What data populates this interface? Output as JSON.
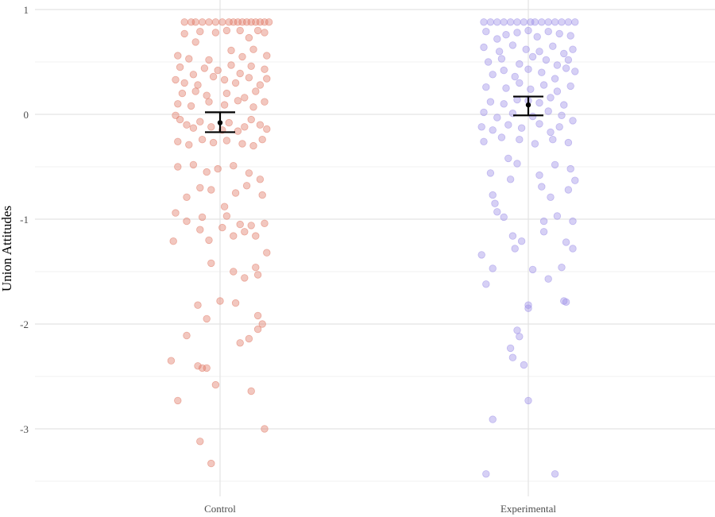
{
  "chart_data": {
    "type": "scatter",
    "subtype": "jitter-strip with mean and error bars",
    "title": "",
    "xlabel": "",
    "ylabel": "Union Attitudes",
    "categories": [
      "Control",
      "Experimental"
    ],
    "ylim": [
      -3.55,
      1.0
    ],
    "y_ticks": [
      1,
      0,
      -1,
      -2,
      -3
    ],
    "y_tick_labels": [
      "1",
      "0",
      "-1",
      "-2",
      "-3"
    ],
    "grid": true,
    "legend": "none",
    "series": [
      {
        "category": "Control",
        "color": "#e07a66",
        "summary": {
          "mean": -0.08,
          "lower": -0.17,
          "upper": 0.02
        },
        "points": [
          [
            -0.16,
            0.88
          ],
          [
            -0.13,
            0.88
          ],
          [
            -0.11,
            0.88
          ],
          [
            -0.08,
            0.88
          ],
          [
            -0.05,
            0.88
          ],
          [
            -0.02,
            0.88
          ],
          [
            0.01,
            0.88
          ],
          [
            0.04,
            0.88
          ],
          [
            0.06,
            0.88
          ],
          [
            0.08,
            0.88
          ],
          [
            0.1,
            0.88
          ],
          [
            0.12,
            0.88
          ],
          [
            0.14,
            0.88
          ],
          [
            0.16,
            0.88
          ],
          [
            0.18,
            0.88
          ],
          [
            0.2,
            0.88
          ],
          [
            0.22,
            0.88
          ],
          [
            -0.16,
            0.77
          ],
          [
            -0.11,
            0.69
          ],
          [
            -0.09,
            0.79
          ],
          [
            -0.02,
            0.78
          ],
          [
            0.03,
            0.8
          ],
          [
            0.09,
            0.8
          ],
          [
            0.13,
            0.73
          ],
          [
            0.17,
            0.8
          ],
          [
            0.2,
            0.78
          ],
          [
            -0.19,
            0.56
          ],
          [
            -0.14,
            0.53
          ],
          [
            -0.05,
            0.52
          ],
          [
            0.05,
            0.61
          ],
          [
            0.1,
            0.55
          ],
          [
            0.15,
            0.62
          ],
          [
            0.21,
            0.56
          ],
          [
            -0.18,
            0.45
          ],
          [
            -0.12,
            0.38
          ],
          [
            -0.07,
            0.44
          ],
          [
            -0.01,
            0.42
          ],
          [
            0.05,
            0.47
          ],
          [
            0.09,
            0.39
          ],
          [
            0.14,
            0.46
          ],
          [
            0.2,
            0.43
          ],
          [
            -0.2,
            0.33
          ],
          [
            -0.16,
            0.3
          ],
          [
            -0.1,
            0.28
          ],
          [
            -0.03,
            0.36
          ],
          [
            0.02,
            0.33
          ],
          [
            0.07,
            0.3
          ],
          [
            0.13,
            0.35
          ],
          [
            0.18,
            0.28
          ],
          [
            0.21,
            0.34
          ],
          [
            -0.17,
            0.2
          ],
          [
            -0.11,
            0.22
          ],
          [
            -0.06,
            0.18
          ],
          [
            0.03,
            0.2
          ],
          [
            0.11,
            0.16
          ],
          [
            0.16,
            0.22
          ],
          [
            -0.19,
            0.1
          ],
          [
            -0.13,
            0.08
          ],
          [
            -0.05,
            0.12
          ],
          [
            0.02,
            0.09
          ],
          [
            0.08,
            0.13
          ],
          [
            0.15,
            0.07
          ],
          [
            0.2,
            0.12
          ],
          [
            -0.2,
            -0.01
          ],
          [
            -0.18,
            -0.05
          ],
          [
            -0.15,
            -0.1
          ],
          [
            -0.12,
            -0.13
          ],
          [
            -0.09,
            -0.07
          ],
          [
            -0.04,
            -0.12
          ],
          [
            0.01,
            -0.15
          ],
          [
            0.04,
            -0.08
          ],
          [
            0.08,
            -0.16
          ],
          [
            0.11,
            -0.12
          ],
          [
            0.14,
            -0.05
          ],
          [
            0.18,
            -0.1
          ],
          [
            0.21,
            -0.14
          ],
          [
            -0.19,
            -0.26
          ],
          [
            -0.14,
            -0.29
          ],
          [
            -0.08,
            -0.24
          ],
          [
            -0.03,
            -0.27
          ],
          [
            0.03,
            -0.25
          ],
          [
            0.1,
            -0.28
          ],
          [
            0.15,
            -0.3
          ],
          [
            0.19,
            -0.24
          ],
          [
            -0.19,
            -0.5
          ],
          [
            -0.12,
            -0.48
          ],
          [
            -0.06,
            -0.55
          ],
          [
            -0.01,
            -0.52
          ],
          [
            0.06,
            -0.49
          ],
          [
            0.13,
            -0.56
          ],
          [
            0.18,
            -0.62
          ],
          [
            -0.15,
            -0.79
          ],
          [
            -0.09,
            -0.7
          ],
          [
            -0.04,
            -0.72
          ],
          [
            0.02,
            -0.88
          ],
          [
            0.07,
            -0.75
          ],
          [
            0.12,
            -0.68
          ],
          [
            0.19,
            -0.77
          ],
          [
            -0.2,
            -0.94
          ],
          [
            -0.15,
            -1.02
          ],
          [
            -0.08,
            -0.98
          ],
          [
            0.03,
            -0.97
          ],
          [
            0.09,
            -1.05
          ],
          [
            0.14,
            -1.06
          ],
          [
            0.2,
            -1.04
          ],
          [
            -0.21,
            -1.21
          ],
          [
            -0.09,
            -1.1
          ],
          [
            -0.05,
            -1.2
          ],
          [
            0.01,
            -1.08
          ],
          [
            0.06,
            -1.16
          ],
          [
            0.11,
            -1.12
          ],
          [
            0.16,
            -1.16
          ],
          [
            0.21,
            -1.32
          ],
          [
            -0.04,
            -1.42
          ],
          [
            0.06,
            -1.5
          ],
          [
            0.11,
            -1.56
          ],
          [
            0.16,
            -1.46
          ],
          [
            0.17,
            -1.53
          ],
          [
            -0.1,
            -1.82
          ],
          [
            -0.06,
            -1.95
          ],
          [
            0.0,
            -1.78
          ],
          [
            0.07,
            -1.8
          ],
          [
            0.17,
            -1.92
          ],
          [
            -0.15,
            -2.11
          ],
          [
            0.09,
            -2.18
          ],
          [
            0.13,
            -2.14
          ],
          [
            0.19,
            -2.0
          ],
          [
            0.17,
            -2.05
          ],
          [
            -0.22,
            -2.35
          ],
          [
            -0.1,
            -2.4
          ],
          [
            -0.08,
            -2.42
          ],
          [
            -0.06,
            -2.42
          ],
          [
            -0.19,
            -2.73
          ],
          [
            -0.02,
            -2.58
          ],
          [
            0.14,
            -2.64
          ],
          [
            0.2,
            -3.0
          ],
          [
            -0.09,
            -3.12
          ],
          [
            -0.04,
            -3.33
          ]
        ]
      },
      {
        "category": "Experimental",
        "color": "#9d8fe8",
        "summary": {
          "mean": 0.09,
          "lower": -0.01,
          "upper": 0.17
        },
        "points": [
          [
            -0.2,
            0.88
          ],
          [
            -0.17,
            0.88
          ],
          [
            -0.14,
            0.88
          ],
          [
            -0.11,
            0.88
          ],
          [
            -0.08,
            0.88
          ],
          [
            -0.05,
            0.88
          ],
          [
            -0.02,
            0.88
          ],
          [
            0.01,
            0.88
          ],
          [
            0.03,
            0.88
          ],
          [
            0.06,
            0.88
          ],
          [
            0.09,
            0.88
          ],
          [
            0.12,
            0.88
          ],
          [
            0.15,
            0.88
          ],
          [
            0.18,
            0.88
          ],
          [
            0.21,
            0.88
          ],
          [
            -0.19,
            0.79
          ],
          [
            -0.14,
            0.72
          ],
          [
            -0.1,
            0.76
          ],
          [
            -0.05,
            0.78
          ],
          [
            0.0,
            0.8
          ],
          [
            0.04,
            0.74
          ],
          [
            0.09,
            0.79
          ],
          [
            0.14,
            0.77
          ],
          [
            0.19,
            0.75
          ],
          [
            -0.2,
            0.64
          ],
          [
            -0.13,
            0.6
          ],
          [
            -0.07,
            0.66
          ],
          [
            -0.01,
            0.62
          ],
          [
            0.05,
            0.6
          ],
          [
            0.11,
            0.65
          ],
          [
            0.16,
            0.58
          ],
          [
            0.2,
            0.62
          ],
          [
            -0.18,
            0.5
          ],
          [
            -0.12,
            0.53
          ],
          [
            -0.04,
            0.48
          ],
          [
            0.02,
            0.55
          ],
          [
            0.08,
            0.52
          ],
          [
            0.13,
            0.47
          ],
          [
            0.18,
            0.52
          ],
          [
            -0.16,
            0.38
          ],
          [
            -0.11,
            0.42
          ],
          [
            -0.06,
            0.36
          ],
          [
            0.0,
            0.43
          ],
          [
            0.06,
            0.4
          ],
          [
            0.12,
            0.34
          ],
          [
            0.17,
            0.44
          ],
          [
            0.21,
            0.41
          ],
          [
            -0.19,
            0.26
          ],
          [
            -0.1,
            0.25
          ],
          [
            -0.04,
            0.3
          ],
          [
            0.01,
            0.24
          ],
          [
            0.07,
            0.28
          ],
          [
            0.13,
            0.22
          ],
          [
            0.19,
            0.27
          ],
          [
            -0.17,
            0.12
          ],
          [
            -0.11,
            0.1
          ],
          [
            -0.05,
            0.14
          ],
          [
            0.0,
            0.13
          ],
          [
            0.05,
            0.11
          ],
          [
            0.1,
            0.16
          ],
          [
            0.16,
            0.09
          ],
          [
            -0.2,
            0.02
          ],
          [
            -0.14,
            -0.03
          ],
          [
            -0.07,
            0.01
          ],
          [
            0.02,
            -0.02
          ],
          [
            0.09,
            0.03
          ],
          [
            0.15,
            -0.01
          ],
          [
            -0.21,
            -0.12
          ],
          [
            -0.16,
            -0.15
          ],
          [
            -0.09,
            -0.1
          ],
          [
            -0.03,
            -0.13
          ],
          [
            0.05,
            -0.09
          ],
          [
            0.1,
            -0.17
          ],
          [
            0.14,
            -0.12
          ],
          [
            0.2,
            -0.06
          ],
          [
            -0.2,
            -0.26
          ],
          [
            -0.12,
            -0.22
          ],
          [
            -0.04,
            -0.24
          ],
          [
            0.03,
            -0.28
          ],
          [
            0.11,
            -0.24
          ],
          [
            0.18,
            -0.27
          ],
          [
            -0.17,
            -0.56
          ],
          [
            -0.09,
            -0.42
          ],
          [
            -0.05,
            -0.47
          ],
          [
            0.05,
            -0.58
          ],
          [
            0.12,
            -0.48
          ],
          [
            0.19,
            -0.52
          ],
          [
            0.21,
            -0.63
          ],
          [
            -0.16,
            -0.77
          ],
          [
            -0.15,
            -0.85
          ],
          [
            -0.08,
            -0.62
          ],
          [
            0.06,
            -0.69
          ],
          [
            0.1,
            -0.79
          ],
          [
            0.18,
            -0.72
          ],
          [
            -0.14,
            -0.93
          ],
          [
            -0.11,
            -0.98
          ],
          [
            0.07,
            -1.02
          ],
          [
            0.13,
            -0.97
          ],
          [
            0.2,
            -1.02
          ],
          [
            -0.07,
            -1.16
          ],
          [
            -0.06,
            -1.28
          ],
          [
            -0.03,
            -1.21
          ],
          [
            0.07,
            -1.12
          ],
          [
            0.17,
            -1.22
          ],
          [
            0.2,
            -1.28
          ],
          [
            -0.21,
            -1.34
          ],
          [
            -0.16,
            -1.47
          ],
          [
            0.02,
            -1.48
          ],
          [
            0.09,
            -1.57
          ],
          [
            0.15,
            -1.46
          ],
          [
            -0.19,
            -1.62
          ],
          [
            0.16,
            -1.78
          ],
          [
            0.17,
            -1.79
          ],
          [
            0.0,
            -1.85
          ],
          [
            0.0,
            -1.82
          ],
          [
            -0.05,
            -2.06
          ],
          [
            -0.04,
            -2.12
          ],
          [
            -0.07,
            -2.32
          ],
          [
            -0.08,
            -2.23
          ],
          [
            -0.02,
            -2.39
          ],
          [
            -0.16,
            -2.91
          ],
          [
            0.0,
            -2.73
          ],
          [
            -0.19,
            -3.43
          ],
          [
            0.12,
            -3.43
          ]
        ]
      }
    ]
  }
}
